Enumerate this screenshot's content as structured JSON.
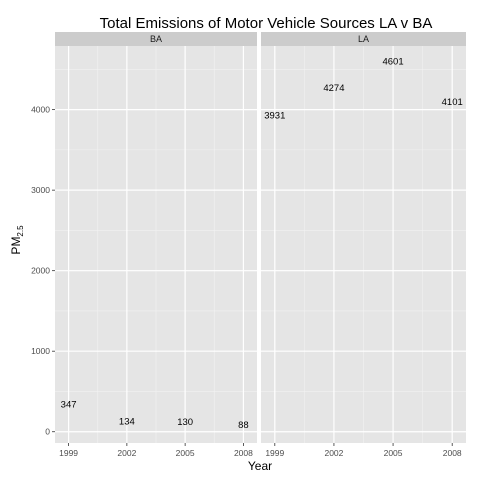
{
  "chart_data": {
    "type": "scatter",
    "title": "Total Emissions of Motor Vehicle Sources LA v BA",
    "xlabel": "Year",
    "ylabel_main": "PM",
    "ylabel_sub": "2.5",
    "x_ticks": [
      1999,
      2002,
      2005,
      2008
    ],
    "y_ticks": [
      0,
      1000,
      2000,
      3000,
      4000
    ],
    "y_tick_labels": [
      "0",
      "1000",
      "2000",
      "3000",
      "4000"
    ],
    "x_tick_labels": [
      "1999",
      "2002",
      "2005",
      "2008"
    ],
    "xlim": [
      1998.3,
      2008.7
    ],
    "ylim": [
      -140,
      4790
    ],
    "grid": true,
    "colors": {
      "panel_bg": "#e5e5e5",
      "strip_bg": "#cccccc",
      "grid_major": "#ffffff",
      "grid_minor": "#f2f2f2",
      "text": "#000000",
      "tick_text": "#4d4d4d"
    },
    "panels": [
      {
        "name": "BA",
        "points": [
          {
            "x": 1999,
            "y": 347,
            "label": "347"
          },
          {
            "x": 2002,
            "y": 134,
            "label": "134"
          },
          {
            "x": 2005,
            "y": 130,
            "label": "130"
          },
          {
            "x": 2008,
            "y": 88,
            "label": "88"
          }
        ]
      },
      {
        "name": "LA",
        "points": [
          {
            "x": 1999,
            "y": 3931,
            "label": "3931"
          },
          {
            "x": 2002,
            "y": 4274,
            "label": "4274"
          },
          {
            "x": 2005,
            "y": 4601,
            "label": "4601"
          },
          {
            "x": 2008,
            "y": 4101,
            "label": "4101"
          }
        ]
      }
    ]
  }
}
